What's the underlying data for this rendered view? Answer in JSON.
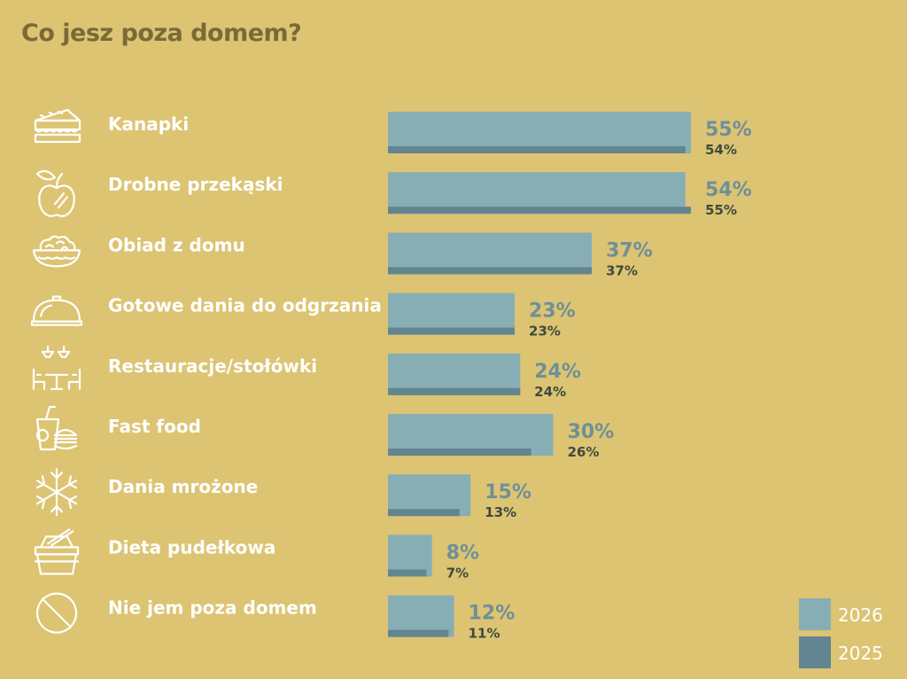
{
  "title": "Co jesz poza domem?",
  "colors": {
    "background": "#dcc473",
    "series_2026": "#88aeb5",
    "series_2025": "#628591",
    "title": "#7a6a37",
    "value_2026_text": "#6f8f99",
    "value_2025_text": "#3f4a3d"
  },
  "legend": [
    {
      "label": "2026",
      "color": "#88aeb5"
    },
    {
      "label": "2025",
      "color": "#628591"
    }
  ],
  "chart_data": {
    "type": "bar",
    "orientation": "horizontal",
    "title": "Co jesz poza domem?",
    "xlabel": "",
    "ylabel": "",
    "xlim": [
      0,
      60
    ],
    "categories": [
      "Kanapki",
      "Drobne przekąski",
      "Obiad z domu",
      "Gotowe dania do odgrzania",
      "Restauracje/stołówki",
      "Fast food",
      "Dania mrożone",
      "Dieta pudełkowa",
      "Nie jem poza domem"
    ],
    "icons": [
      "sandwich-icon",
      "apple-icon",
      "salad-bowl-icon",
      "serving-dish-icon",
      "restaurant-icon",
      "fast-food-icon",
      "snowflake-icon",
      "lunch-box-icon",
      "prohibited-icon"
    ],
    "series": [
      {
        "name": "2026",
        "values": [
          55,
          54,
          37,
          23,
          24,
          30,
          15,
          8,
          12
        ],
        "labels": [
          "55%",
          "54%",
          "37%",
          "23%",
          "24%",
          "30%",
          "15%",
          "8%",
          "12%"
        ]
      },
      {
        "name": "2025",
        "values": [
          54,
          55,
          37,
          23,
          24,
          26,
          13,
          7,
          11
        ],
        "labels": [
          "54%",
          "55%",
          "37%",
          "23%",
          "24%",
          "26%",
          "13%",
          "7%",
          "11%"
        ]
      }
    ],
    "legend_position": "bottom-right",
    "grid": false
  }
}
